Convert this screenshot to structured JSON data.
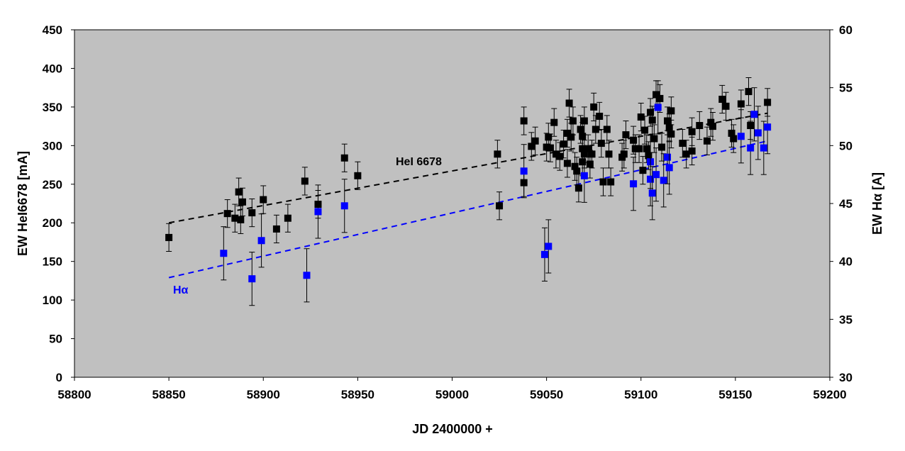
{
  "chart_data": {
    "type": "scatter",
    "title": "",
    "xlabel": "JD 2400000 +",
    "ylabel": "EW HeI6678 [mA]",
    "y2label": "EW Hα [A]",
    "xlim": [
      58800,
      59200
    ],
    "ylim": [
      0,
      450
    ],
    "y2lim": [
      30,
      60
    ],
    "xticks": [
      58800,
      58850,
      58900,
      58950,
      59000,
      59050,
      59100,
      59150,
      59200
    ],
    "yticks": [
      0,
      50,
      100,
      150,
      200,
      250,
      300,
      350,
      400,
      450
    ],
    "y2ticks": [
      30,
      35,
      40,
      45,
      50,
      55,
      60
    ],
    "grid": false,
    "plot_background": "#c0c0c0",
    "series": [
      {
        "name": "HeI 6678",
        "axis": "left",
        "color": "#000000",
        "marker": "square",
        "error": 18,
        "trend": [
          [
            58850,
            200
          ],
          [
            59167,
            342
          ]
        ],
        "points": [
          [
            58850,
            181
          ],
          [
            58881,
            212
          ],
          [
            58885,
            206
          ],
          [
            58887,
            240
          ],
          [
            58888,
            204
          ],
          [
            58889,
            227
          ],
          [
            58894,
            213
          ],
          [
            58900,
            230
          ],
          [
            58907,
            192
          ],
          [
            58913,
            206
          ],
          [
            58922,
            254
          ],
          [
            58929,
            224
          ],
          [
            58943,
            284
          ],
          [
            58950,
            261
          ],
          [
            59024,
            289
          ],
          [
            59025,
            222
          ],
          [
            59038,
            332
          ],
          [
            59038,
            252
          ],
          [
            59042,
            299
          ],
          [
            59044,
            306
          ],
          [
            59050,
            298
          ],
          [
            59051,
            311
          ],
          [
            59052,
            297
          ],
          [
            59054,
            330
          ],
          [
            59055,
            289
          ],
          [
            59057,
            286
          ],
          [
            59059,
            302
          ],
          [
            59061,
            316
          ],
          [
            59061,
            277
          ],
          [
            59062,
            355
          ],
          [
            59063,
            311
          ],
          [
            59064,
            332
          ],
          [
            59065,
            273
          ],
          [
            59066,
            267
          ],
          [
            59067,
            245
          ],
          [
            59068,
            321
          ],
          [
            59069,
            279
          ],
          [
            59069,
            312
          ],
          [
            59069,
            296
          ],
          [
            59070,
            332
          ],
          [
            59070,
            289
          ],
          [
            59072,
            296
          ],
          [
            59073,
            276
          ],
          [
            59074,
            289
          ],
          [
            59075,
            350
          ],
          [
            59076,
            321
          ],
          [
            59078,
            338
          ],
          [
            59079,
            303
          ],
          [
            59080,
            253
          ],
          [
            59082,
            321
          ],
          [
            59083,
            289
          ],
          [
            59084,
            253
          ],
          [
            59090,
            285
          ],
          [
            59091,
            289
          ],
          [
            59092,
            314
          ],
          [
            59096,
            307
          ],
          [
            59097,
            296
          ],
          [
            59099,
            296
          ],
          [
            59100,
            337
          ],
          [
            59101,
            268
          ],
          [
            59102,
            320
          ],
          [
            59103,
            296
          ],
          [
            59104,
            287
          ],
          [
            59105,
            343
          ],
          [
            59106,
            333
          ],
          [
            59107,
            309
          ],
          [
            59108,
            366
          ],
          [
            59110,
            361
          ],
          [
            59111,
            298
          ],
          [
            59114,
            332
          ],
          [
            59115,
            323
          ],
          [
            59116,
            345
          ],
          [
            59116,
            315
          ],
          [
            59122,
            303
          ],
          [
            59124,
            289
          ],
          [
            59127,
            318
          ],
          [
            59127,
            293
          ],
          [
            59131,
            326
          ],
          [
            59135,
            306
          ],
          [
            59137,
            330
          ],
          [
            59138,
            325
          ],
          [
            59143,
            360
          ],
          [
            59145,
            351
          ],
          [
            59148,
            316
          ],
          [
            59149,
            309
          ],
          [
            59153,
            354
          ],
          [
            59157,
            370
          ],
          [
            59158,
            326
          ],
          [
            59167,
            356
          ]
        ]
      },
      {
        "name": "Hα",
        "axis": "right",
        "color": "#0000ff",
        "marker": "square",
        "error": 2.3,
        "trend": [
          [
            58850,
            38.6
          ],
          [
            59167,
            50.4
          ]
        ],
        "points": [
          [
            58879,
            40.7
          ],
          [
            58894,
            38.5
          ],
          [
            58899,
            41.8
          ],
          [
            58923,
            38.8
          ],
          [
            58929,
            44.3
          ],
          [
            58943,
            44.8
          ],
          [
            59038,
            47.8
          ],
          [
            59049,
            40.6
          ],
          [
            59051,
            41.3
          ],
          [
            59070,
            47.4
          ],
          [
            59096,
            46.7
          ],
          [
            59105,
            48.6
          ],
          [
            59105,
            47.1
          ],
          [
            59106,
            45.9
          ],
          [
            59108,
            47.5
          ],
          [
            59109,
            53.3
          ],
          [
            59112,
            47.0
          ],
          [
            59114,
            49.0
          ],
          [
            59115,
            48.1
          ],
          [
            59153,
            50.8
          ],
          [
            59158,
            49.8
          ],
          [
            59160,
            52.7
          ],
          [
            59162,
            51.1
          ],
          [
            59165,
            49.8
          ],
          [
            59167,
            51.6
          ]
        ]
      }
    ]
  }
}
